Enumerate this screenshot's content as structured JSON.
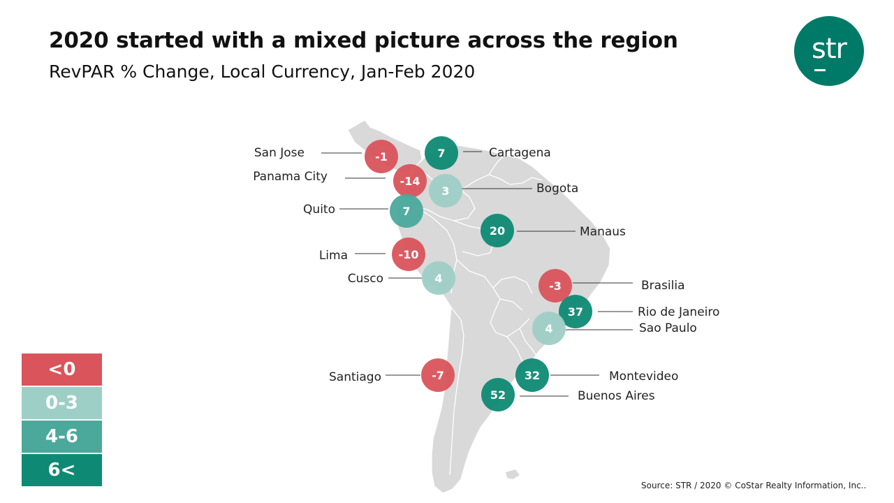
{
  "title": "2020 started with a mixed picture across the region",
  "subtitle": "RevPAR % Change, Local Currency, Jan-Feb 2020",
  "logo_text": "str",
  "source": "Source: STR / 2020 © CoStar Realty Information, Inc..",
  "colors": {
    "negative": "#d9545b",
    "light": "#9ecfc7",
    "mid": "#4aa99b",
    "dark": "#0e8a74",
    "land": "#d9d9d9",
    "brand": "#007a68"
  },
  "legend": [
    {
      "label": "<0",
      "color": "#d9545b"
    },
    {
      "label": "0-3",
      "color": "#9ecfc7"
    },
    {
      "label": "4-6",
      "color": "#4aa99b"
    },
    {
      "label": "6<",
      "color": "#0e8a74"
    }
  ],
  "cities": [
    {
      "name": "San Jose",
      "value": "-1",
      "category": "negative"
    },
    {
      "name": "Cartagena",
      "value": "7",
      "category": "dark"
    },
    {
      "name": "Panama City",
      "value": "-14",
      "category": "negative"
    },
    {
      "name": "Bogota",
      "value": "3",
      "category": "light"
    },
    {
      "name": "Quito",
      "value": "7",
      "category": "mid"
    },
    {
      "name": "Manaus",
      "value": "20",
      "category": "dark"
    },
    {
      "name": "Lima",
      "value": "-10",
      "category": "negative"
    },
    {
      "name": "Cusco",
      "value": "4",
      "category": "light"
    },
    {
      "name": "Brasilia",
      "value": "-3",
      "category": "negative"
    },
    {
      "name": "Rio de Janeiro",
      "value": "37",
      "category": "dark"
    },
    {
      "name": "Sao Paulo",
      "value": "4",
      "category": "light"
    },
    {
      "name": "Santiago",
      "value": "-7",
      "category": "negative"
    },
    {
      "name": "Montevideo",
      "value": "32",
      "category": "dark"
    },
    {
      "name": "Buenos Aires",
      "value": "52",
      "category": "dark"
    }
  ]
}
